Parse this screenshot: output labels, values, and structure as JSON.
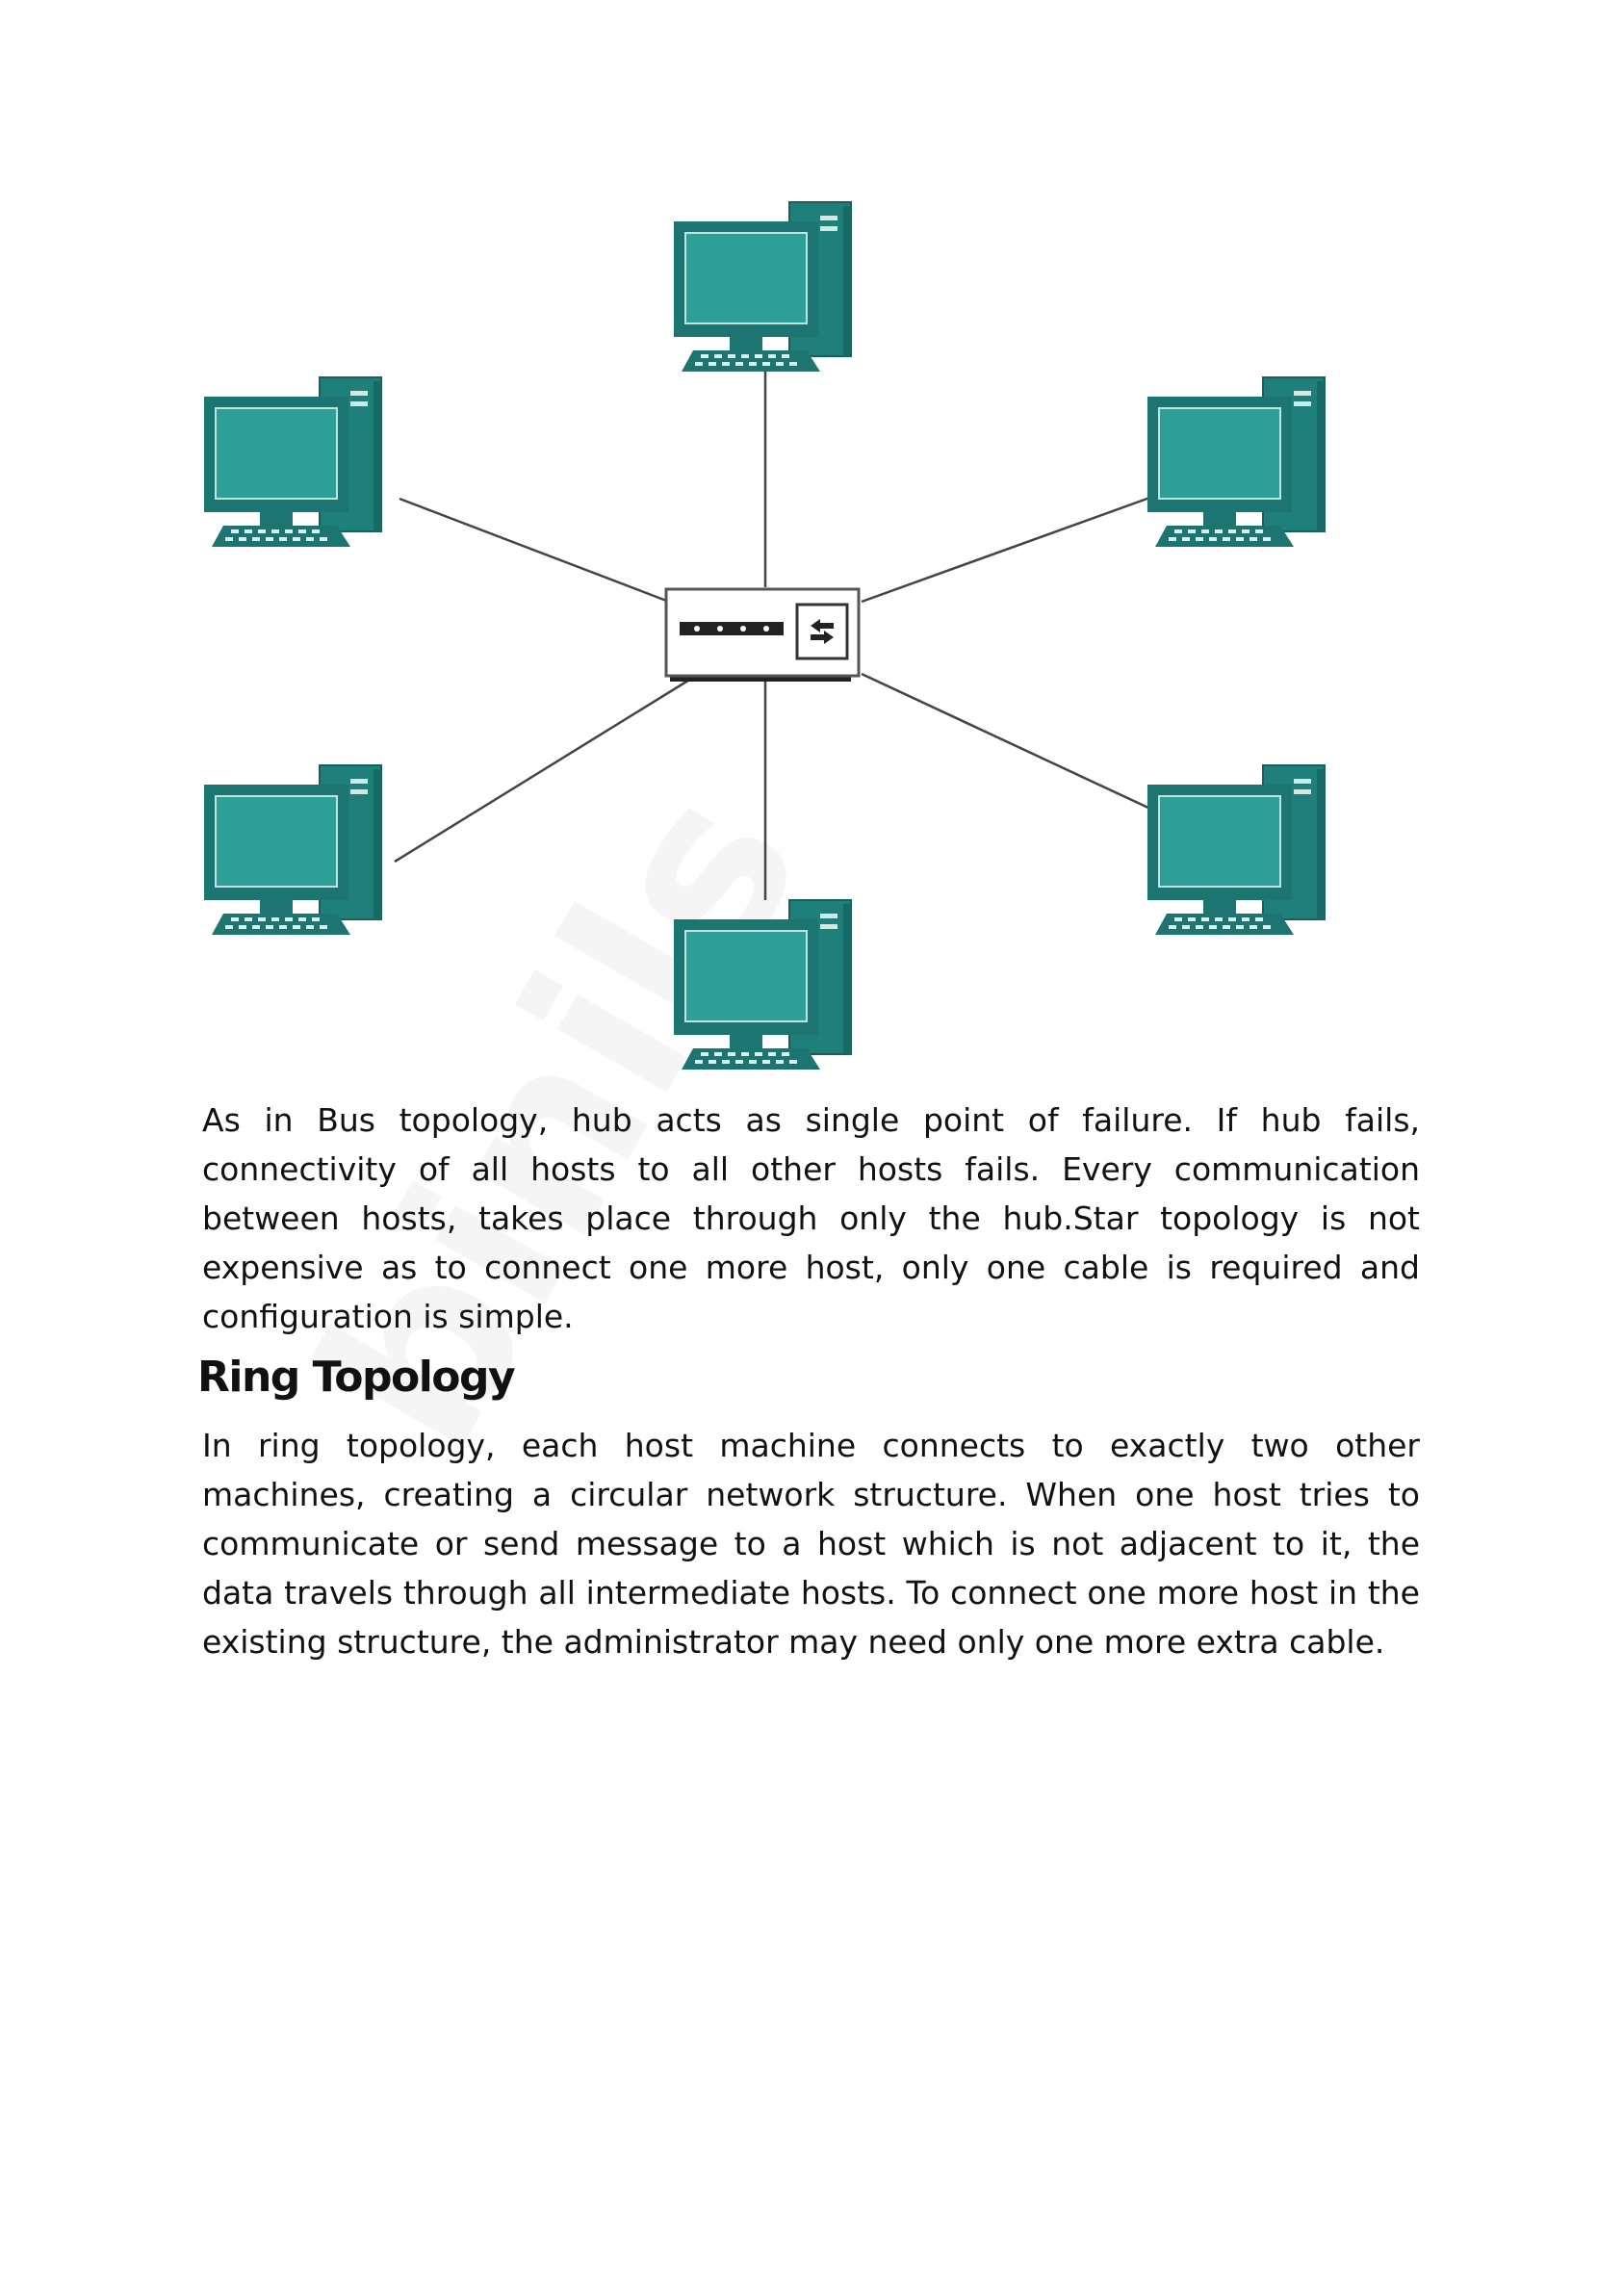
{
  "diagram": {
    "colors": {
      "screen": "#258a85",
      "screen_inner": "#2d9e98",
      "bezel": "#1d7571",
      "line": "#444444",
      "hub_body": "#ffffff",
      "hub_border": "#555555"
    },
    "icons": {
      "host": "desktop-computer-icon",
      "hub": "network-hub-icon"
    }
  },
  "paragraph1": "As in Bus topology, hub acts as single point of failure. If hub fails, connectivity of all hosts to all other hosts fails. Every communication between hosts, takes place through only the hub.Star topology is not expensive as to connect one more host, only one cable is required and configuration is simple.",
  "heading": "Ring Topology",
  "paragraph2": "In ring topology, each host machine connects to exactly two other machines, creating a circular network structure. When one host tries to communicate or send message to a host which is not adjacent to it, the data travels through all intermediate hosts. To connect one more host in the existing structure, the administrator may need only one more extra cable.",
  "watermark": "binils"
}
